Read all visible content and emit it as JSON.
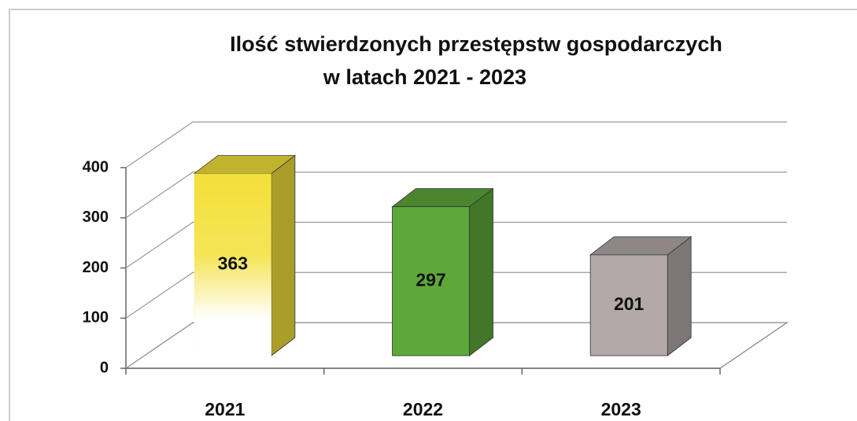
{
  "chart_data": {
    "type": "bar3d",
    "title": [
      "Ilość stwierdzonych przestępstw gospodarczych",
      "w  latach 2021 - 2023"
    ],
    "categories": [
      "2021",
      "2022",
      "2023"
    ],
    "values": [
      363,
      297,
      201
    ],
    "colors": [
      "#f3e03a",
      "#5ea83a",
      "#b3a9a9"
    ],
    "ylim": [
      0,
      400
    ],
    "yticks": [
      0,
      100,
      200,
      300,
      400
    ],
    "grid": true
  }
}
